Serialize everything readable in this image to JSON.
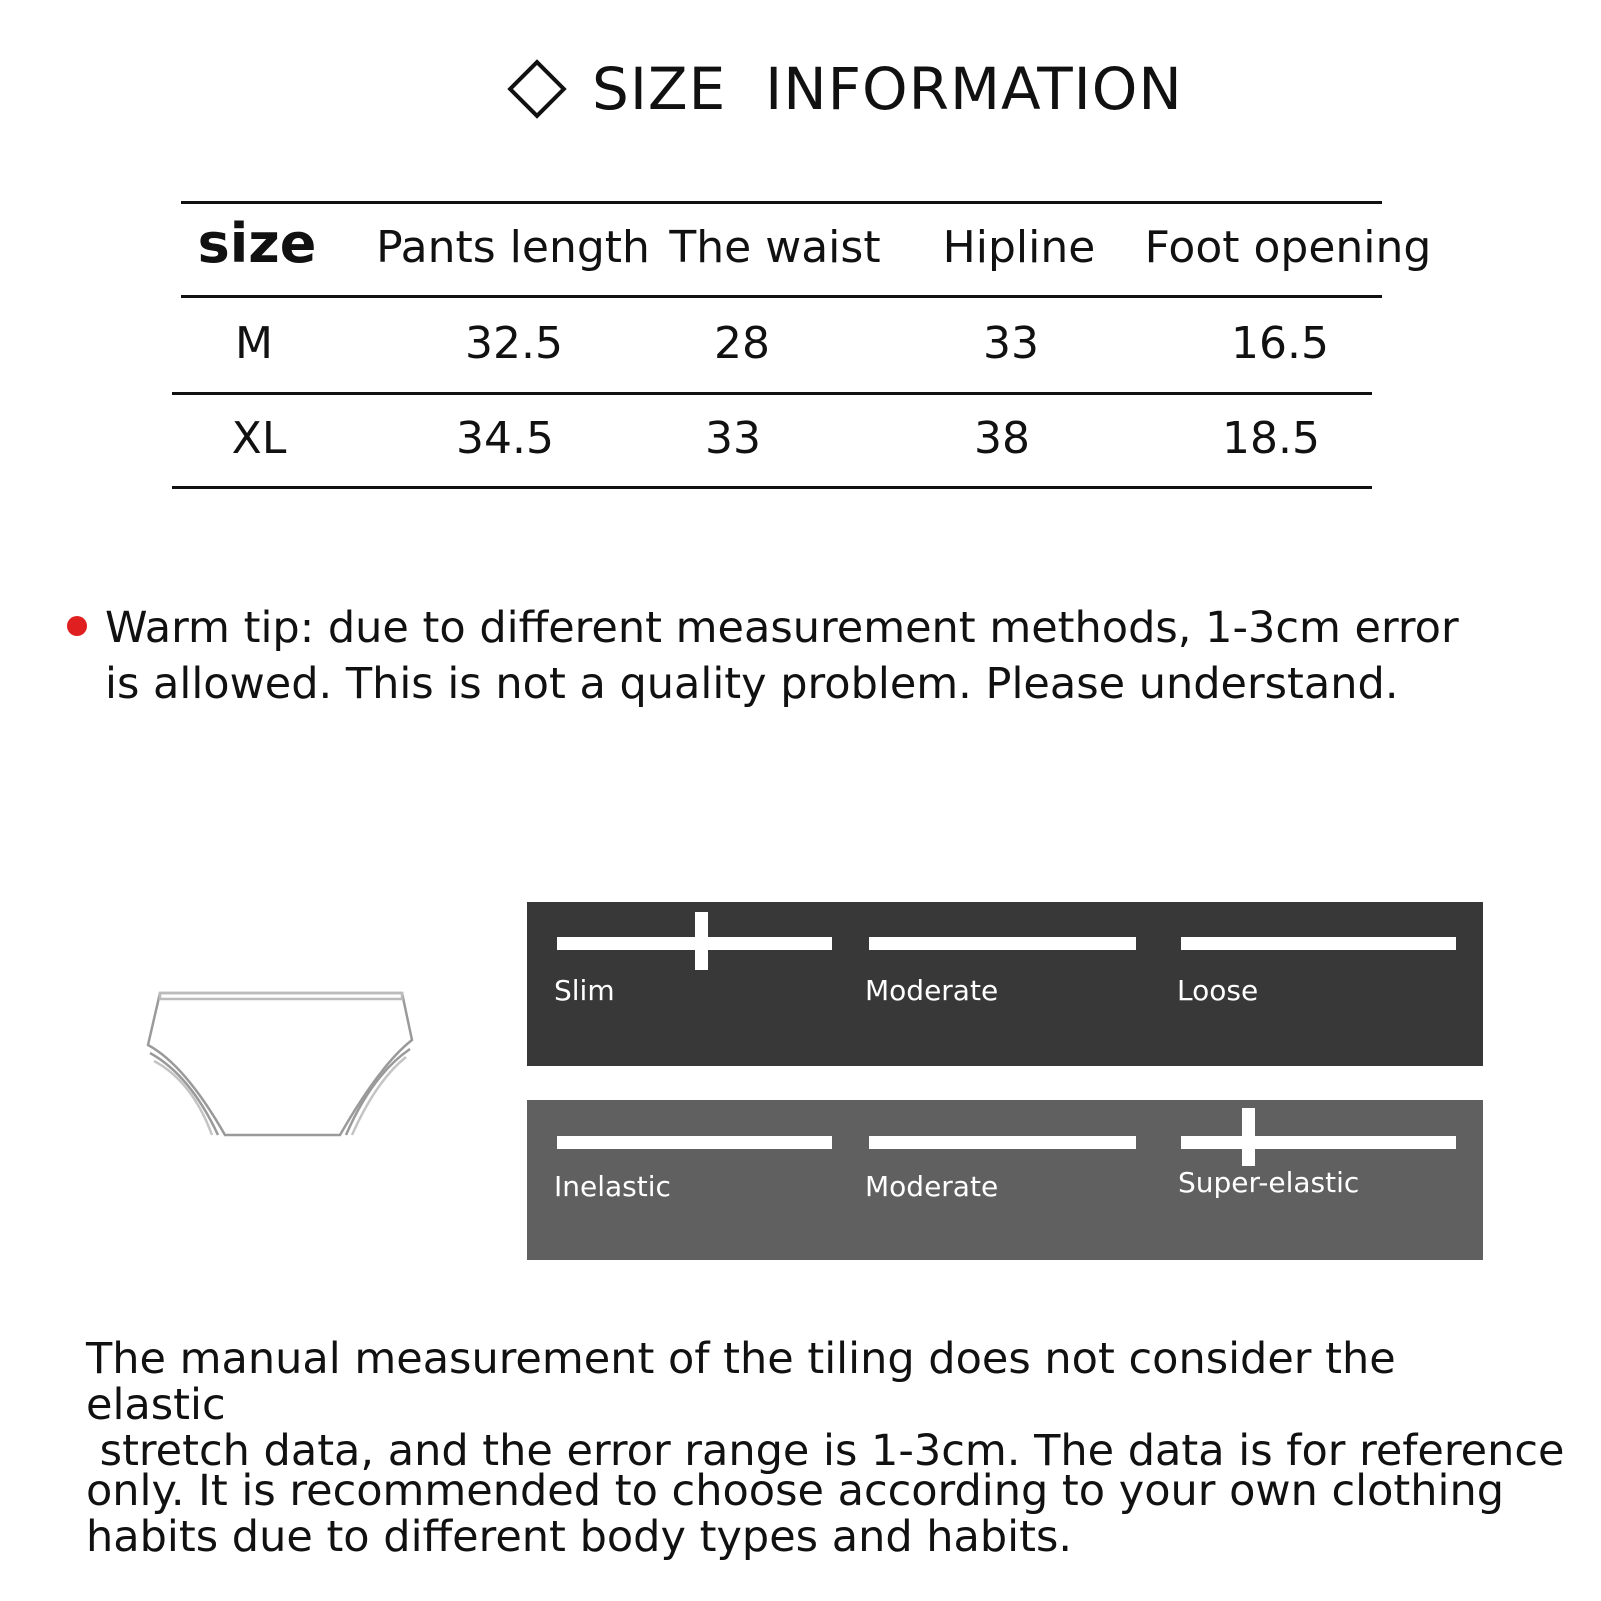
{
  "title": "SIZE  INFORMATION",
  "title_icon": "diamond-outline-icon",
  "table": {
    "headers": [
      "size",
      "Pants length",
      "The waist",
      "Hipline",
      "Foot opening"
    ],
    "rows": [
      [
        "M",
        "32.5",
        "28",
        "33",
        "16.5"
      ],
      [
        "XL",
        "34.5",
        "33",
        "38",
        "18.5"
      ]
    ]
  },
  "tip": {
    "bullet_color": "#e02020",
    "text": "Warm tip: due to different measurement methods, 1-3cm error is allowed. This is not a quality problem. Please understand."
  },
  "fit_scale": {
    "background": "#383838",
    "labels": [
      "Slim",
      "Moderate",
      "Loose"
    ],
    "selected": "Slim"
  },
  "elastic_scale": {
    "background": "#606060",
    "labels": [
      "Inelastic",
      "Moderate",
      "Super-elastic"
    ],
    "selected": "Super-elastic"
  },
  "product_icon": "briefs-outline-icon",
  "note": {
    "line1": "The manual measurement of the tiling does not consider the elastic",
    "line2": " stretch data, and the error range is 1-3cm. The data is for reference",
    "line3": "only. It is recommended to choose according to your own clothing",
    "line4": "habits due to different body types and habits."
  }
}
